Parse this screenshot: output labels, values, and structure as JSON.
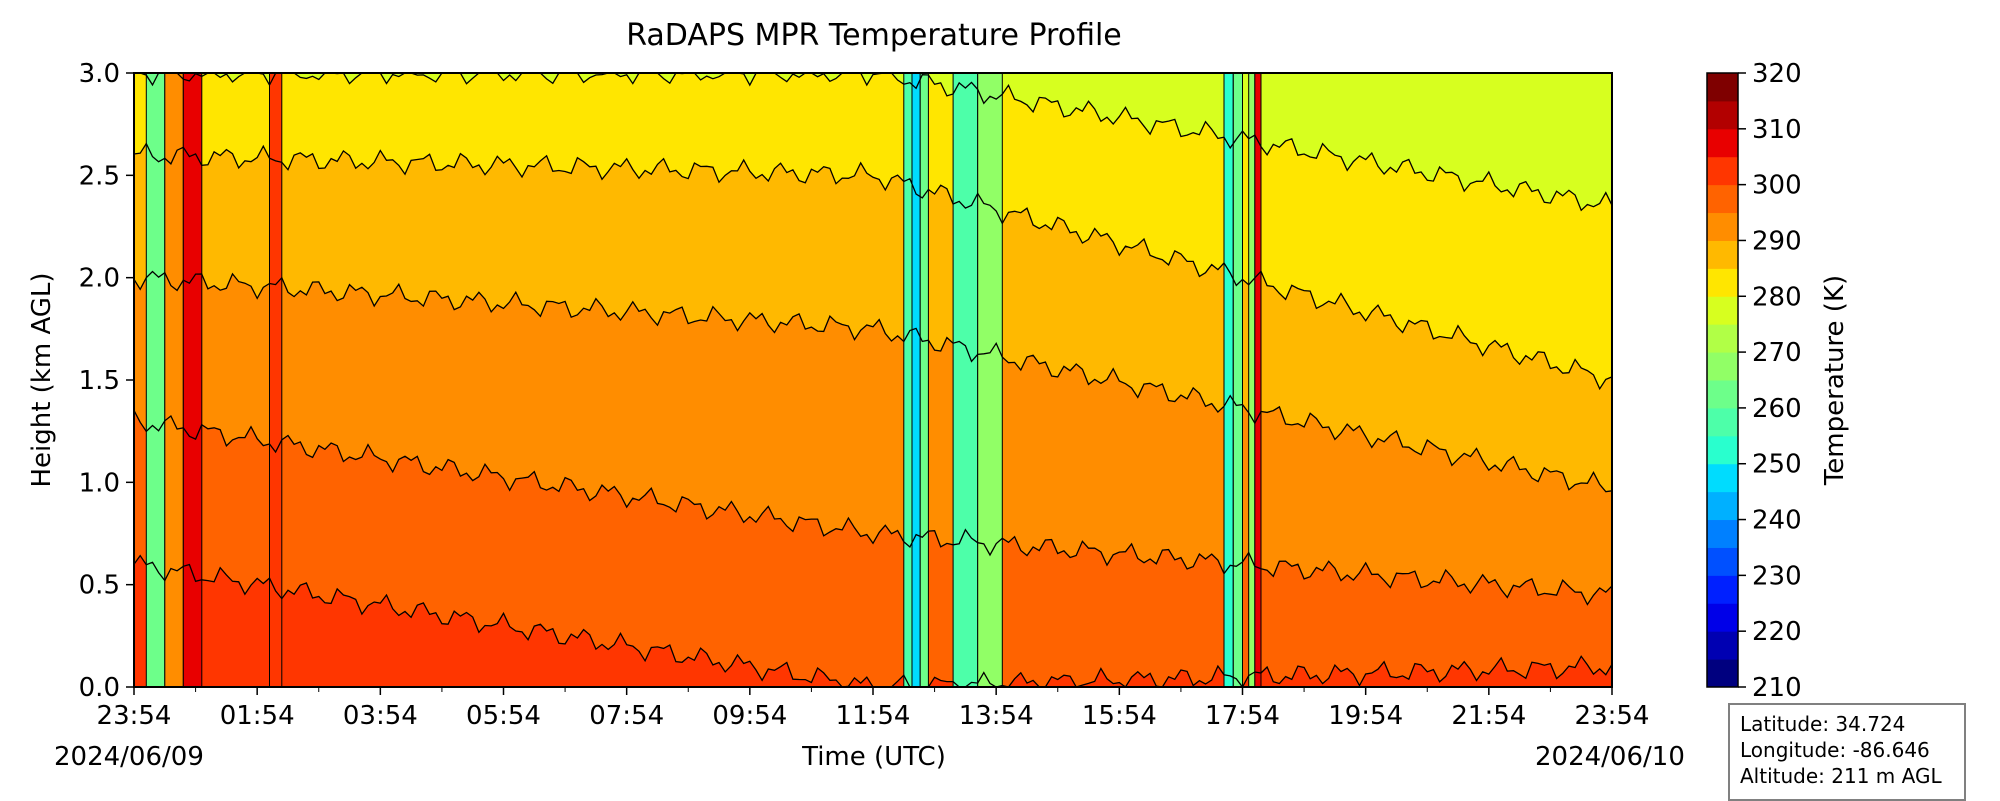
{
  "chart_data": {
    "type": "heatmap",
    "subtype": "filled-contour",
    "title": "RaDAPS MPR Temperature Profile",
    "xlabel": "Time (UTC)",
    "ylabel": "Height (km AGL)",
    "x_tick_labels": [
      "23:54",
      "01:54",
      "03:54",
      "05:54",
      "07:54",
      "09:54",
      "11:54",
      "13:54",
      "15:54",
      "17:54",
      "19:54",
      "21:54",
      "23:54"
    ],
    "x_tick_hours": [
      0,
      2,
      4,
      6,
      8,
      10,
      12,
      14,
      16,
      18,
      20,
      22,
      24
    ],
    "x_range_hours": [
      0,
      24
    ],
    "start_date_label": "2024/06/09",
    "end_date_label": "2024/06/10",
    "y_ticks": [
      "0.0",
      "0.5",
      "1.0",
      "1.5",
      "2.0",
      "2.5",
      "3.0"
    ],
    "ylim": [
      0.0,
      3.0
    ],
    "colorbar": {
      "label": "Temperature (K)",
      "range": [
        210,
        320
      ],
      "tick_labels": [
        "210",
        "220",
        "230",
        "240",
        "250",
        "260",
        "270",
        "280",
        "290",
        "300",
        "310",
        "320"
      ],
      "levels": [
        {
          "from": 210,
          "to": 215,
          "color": "#00007f"
        },
        {
          "from": 215,
          "to": 220,
          "color": "#0000b2"
        },
        {
          "from": 220,
          "to": 225,
          "color": "#0000e8"
        },
        {
          "from": 225,
          "to": 230,
          "color": "#0020ff"
        },
        {
          "from": 230,
          "to": 235,
          "color": "#0050ff"
        },
        {
          "from": 235,
          "to": 240,
          "color": "#0080ff"
        },
        {
          "from": 240,
          "to": 245,
          "color": "#00b0ff"
        },
        {
          "from": 245,
          "to": 250,
          "color": "#00dcfe"
        },
        {
          "from": 250,
          "to": 255,
          "color": "#29ffce"
        },
        {
          "from": 255,
          "to": 260,
          "color": "#4dffa9"
        },
        {
          "from": 260,
          "to": 265,
          "color": "#6dff8a"
        },
        {
          "from": 265,
          "to": 270,
          "color": "#91ff66"
        },
        {
          "from": 270,
          "to": 275,
          "color": "#b1ff46"
        },
        {
          "from": 275,
          "to": 280,
          "color": "#d7ff1f"
        },
        {
          "from": 280,
          "to": 285,
          "color": "#ffe600"
        },
        {
          "from": 285,
          "to": 290,
          "color": "#ffb900"
        },
        {
          "from": 290,
          "to": 295,
          "color": "#ff8d00"
        },
        {
          "from": 295,
          "to": 300,
          "color": "#ff6300"
        },
        {
          "from": 300,
          "to": 305,
          "color": "#ff3600"
        },
        {
          "from": 305,
          "to": 310,
          "color": "#e80000"
        },
        {
          "from": 310,
          "to": 315,
          "color": "#b20000"
        },
        {
          "from": 315,
          "to": 320,
          "color": "#7f0000"
        }
      ]
    },
    "approx_isotherm_heights_km": {
      "note_isotherms_K": [
        300,
        295,
        290,
        285,
        280
      ],
      "early_hour_0_5": [
        0.6,
        1.3,
        2.0,
        2.6,
        3.0
      ],
      "midday_hour_12": [
        0.0,
        0.75,
        1.75,
        2.5,
        3.0
      ],
      "late_hour_24": [
        0.1,
        0.45,
        0.97,
        1.5,
        2.35
      ]
    },
    "anomalous_columns_hours": [
      [
        0.2,
        1.1
      ],
      [
        2.2,
        2.4
      ],
      [
        12.5,
        12.9
      ],
      [
        13.3,
        14.1
      ],
      [
        17.7,
        18.0
      ],
      [
        18.1,
        18.3
      ]
    ],
    "grid": false,
    "legend": "none"
  },
  "station_info": {
    "latitude": "Latitude: 34.724",
    "longitude": "Longitude: -86.646",
    "altitude": "Altitude: 211 m AGL"
  }
}
